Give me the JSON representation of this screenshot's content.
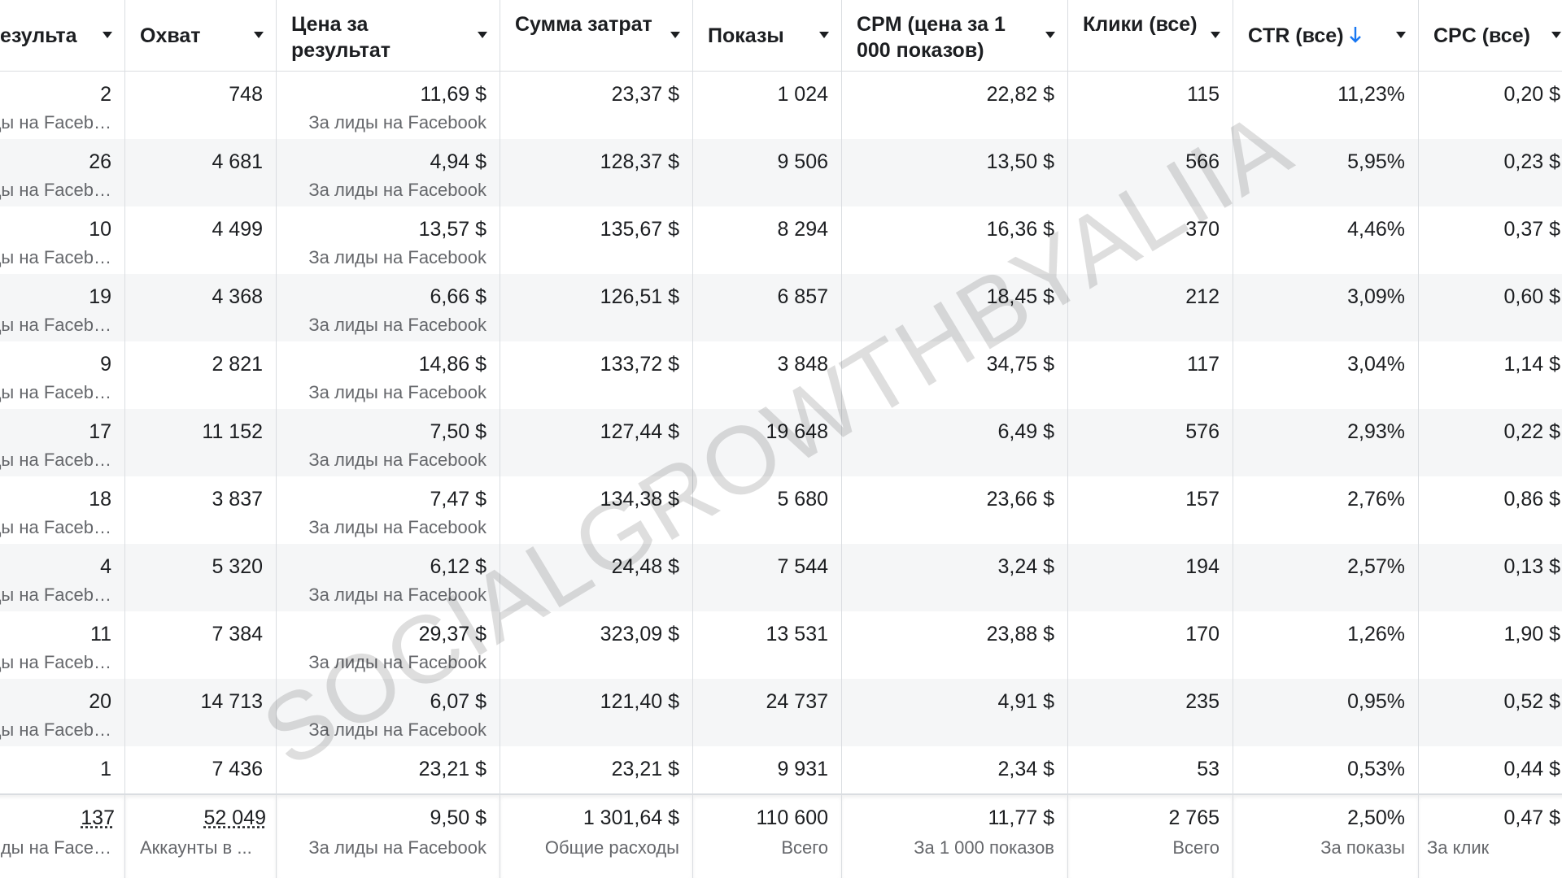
{
  "table": {
    "headers": [
      "Результа",
      "Охват",
      "Цена за результат",
      "Сумма затрат",
      "Показы",
      "CPM (цена за 1 000 показов)",
      "Клики (все)",
      "CTR (все)",
      "CPC (все)"
    ],
    "rows": [
      {
        "cells": [
          "2",
          "748",
          "11,69 $",
          "23,37 $",
          "1 024",
          "22,82 $",
          "115",
          "11,23%",
          "0,20 $"
        ],
        "result_note": "иды на Faceb…",
        "cost_note": "За лиды на Facebook"
      },
      {
        "cells": [
          "26",
          "4 681",
          "4,94 $",
          "128,37 $",
          "9 506",
          "13,50 $",
          "566",
          "5,95%",
          "0,23 $"
        ],
        "result_note": "иды на Faceb…",
        "cost_note": "За лиды на Facebook"
      },
      {
        "cells": [
          "10",
          "4 499",
          "13,57 $",
          "135,67 $",
          "8 294",
          "16,36 $",
          "370",
          "4,46%",
          "0,37 $"
        ],
        "result_note": "иды на Faceb…",
        "cost_note": "За лиды на Facebook"
      },
      {
        "cells": [
          "19",
          "4 368",
          "6,66 $",
          "126,51 $",
          "6 857",
          "18,45 $",
          "212",
          "3,09%",
          "0,60 $"
        ],
        "result_note": "иды на Faceb…",
        "cost_note": "За лиды на Facebook"
      },
      {
        "cells": [
          "9",
          "2 821",
          "14,86 $",
          "133,72 $",
          "3 848",
          "34,75 $",
          "117",
          "3,04%",
          "1,14 $"
        ],
        "result_note": "иды на Faceb…",
        "cost_note": "За лиды на Facebook"
      },
      {
        "cells": [
          "17",
          "11 152",
          "7,50 $",
          "127,44 $",
          "19 648",
          "6,49 $",
          "576",
          "2,93%",
          "0,22 $"
        ],
        "result_note": "иды на Faceb…",
        "cost_note": "За лиды на Facebook"
      },
      {
        "cells": [
          "18",
          "3 837",
          "7,47 $",
          "134,38 $",
          "5 680",
          "23,66 $",
          "157",
          "2,76%",
          "0,86 $"
        ],
        "result_note": "иды на Faceb…",
        "cost_note": "За лиды на Facebook"
      },
      {
        "cells": [
          "4",
          "5 320",
          "6,12 $",
          "24,48 $",
          "7 544",
          "3,24 $",
          "194",
          "2,57%",
          "0,13 $"
        ],
        "result_note": "иды на Faceb…",
        "cost_note": "За лиды на Facebook"
      },
      {
        "cells": [
          "11",
          "7 384",
          "29,37 $",
          "323,09 $",
          "13 531",
          "23,88 $",
          "170",
          "1,26%",
          "1,90 $"
        ],
        "result_note": "иды на Faceb…",
        "cost_note": "За лиды на Facebook"
      },
      {
        "cells": [
          "20",
          "14 713",
          "6,07 $",
          "121,40 $",
          "24 737",
          "4,91 $",
          "235",
          "0,95%",
          "0,52 $"
        ],
        "result_note": "иды на Faceb…",
        "cost_note": "За лиды на Facebook"
      },
      {
        "cells": [
          "1",
          "7 436",
          "23,21 $",
          "23,21 $",
          "9 931",
          "2,34 $",
          "53",
          "0,53%",
          "0,44 $"
        ]
      }
    ],
    "totals": {
      "cells": [
        "137",
        "52 049",
        "9,50 $",
        "1 301,64 $",
        "110 600",
        "11,77 $",
        "2 765",
        "2,50%",
        "0,47 $"
      ],
      "notes": [
        "иды на Face…",
        "Аккаунты в ...",
        "За лиды на Facebook",
        "Общие расходы",
        "Всего",
        "За 1 000 показов",
        "Всего",
        "За показы",
        "За клик"
      ]
    }
  },
  "watermark": "SOCIALGROWTHBYALIIA"
}
